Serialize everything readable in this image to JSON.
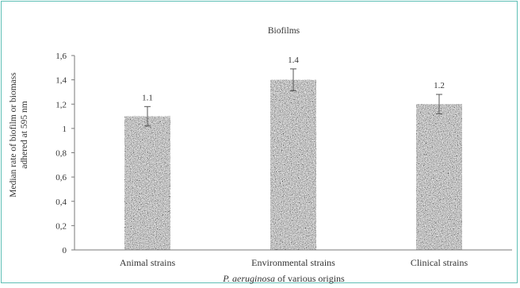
{
  "chart_data": {
    "type": "bar",
    "title": "Biofilms",
    "ylabel_lines": [
      "Median rate of biofilm or biomass",
      "adhered at 595 nm"
    ],
    "xlabel": {
      "italic": "P. aeruginosa",
      "rest": " of various origins"
    },
    "categories": [
      "Animal strains",
      "Environmental strains",
      "Clinical strains"
    ],
    "values": [
      1.1,
      1.4,
      1.2
    ],
    "error": [
      0.08,
      0.09,
      0.08
    ],
    "data_labels": [
      "1.1",
      "1.4",
      "1.2"
    ],
    "ylim": [
      0,
      1.6
    ],
    "yticks": [
      0,
      0.2,
      0.4,
      0.6,
      0.8,
      1,
      1.2,
      1.4,
      1.6
    ],
    "ytick_labels": [
      "0",
      "0,2",
      "0,4",
      "0,6",
      "0,8",
      "1",
      "1,2",
      "1,4",
      "1,6"
    ],
    "grid": false,
    "legend": "none",
    "colors": {
      "frame": "#5fbfb6",
      "axis": "#7a7a7a",
      "bar_base": "#a8a8a8",
      "text": "#333333"
    }
  }
}
